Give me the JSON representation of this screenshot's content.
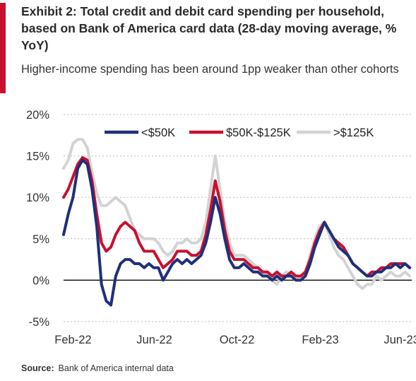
{
  "title": "Exhibit 2: Total credit and debit card spending per household, based on Bank  of America card data (28-day  moving average, % YoY)",
  "subtitle": "Higher-income spending has been around 1pp weaker than other cohorts",
  "source_label": "Source:",
  "source_text": "Bank of America internal data",
  "colors": {
    "accent": "#c8102e"
  },
  "chart_data": {
    "type": "line",
    "ylim": [
      -5,
      20
    ],
    "yticks": [
      -5,
      0,
      5,
      10,
      15,
      20
    ],
    "ytick_labels": [
      "-5%",
      "0%",
      "5%",
      "10%",
      "15%",
      "20%"
    ],
    "xlim": [
      "2022-02-01",
      "2023-06-30"
    ],
    "xtick_dates": [
      "2022-02-15",
      "2022-06-15",
      "2022-10-15",
      "2023-02-15",
      "2023-06-15"
    ],
    "xtick_labels": [
      "Feb-22",
      "Jun-22",
      "Oct-22",
      "Feb-23",
      "Jun-23"
    ],
    "gridlines": "horizontal-dotted",
    "legend_position": "top",
    "series": [
      {
        "name": "<$50K",
        "color": "#1f2f7a",
        "x": [
          "2022-02-01",
          "2022-02-08",
          "2022-02-15",
          "2022-02-22",
          "2022-03-01",
          "2022-03-08",
          "2022-03-15",
          "2022-03-22",
          "2022-03-29",
          "2022-04-05",
          "2022-04-12",
          "2022-04-19",
          "2022-04-26",
          "2022-05-03",
          "2022-05-10",
          "2022-05-17",
          "2022-05-24",
          "2022-05-31",
          "2022-06-07",
          "2022-06-14",
          "2022-06-21",
          "2022-06-28",
          "2022-07-05",
          "2022-07-12",
          "2022-07-19",
          "2022-07-26",
          "2022-08-02",
          "2022-08-09",
          "2022-08-16",
          "2022-08-23",
          "2022-08-30",
          "2022-09-06",
          "2022-09-13",
          "2022-09-20",
          "2022-09-27",
          "2022-10-04",
          "2022-10-11",
          "2022-10-18",
          "2022-10-25",
          "2022-11-01",
          "2022-11-08",
          "2022-11-15",
          "2022-11-22",
          "2022-11-29",
          "2022-12-06",
          "2022-12-13",
          "2022-12-20",
          "2022-12-27",
          "2023-01-03",
          "2023-01-10",
          "2023-01-17",
          "2023-01-24",
          "2023-01-31",
          "2023-02-07",
          "2023-02-14",
          "2023-02-21",
          "2023-02-28",
          "2023-03-07",
          "2023-03-14",
          "2023-03-21",
          "2023-03-28",
          "2023-04-04",
          "2023-04-11",
          "2023-04-18",
          "2023-04-25",
          "2023-05-02",
          "2023-05-09",
          "2023-05-16",
          "2023-05-23",
          "2023-05-30",
          "2023-06-06",
          "2023-06-13",
          "2023-06-20",
          "2023-06-27"
        ],
        "y": [
          5.5,
          8.0,
          10.0,
          13.5,
          14.5,
          14.0,
          11.0,
          6.5,
          -0.5,
          -2.5,
          -3.0,
          0.5,
          2.0,
          2.5,
          2.5,
          2.0,
          2.0,
          1.5,
          2.0,
          1.5,
          1.5,
          0.0,
          1.0,
          2.0,
          2.5,
          2.0,
          2.5,
          2.0,
          2.5,
          3.0,
          4.5,
          7.0,
          10.0,
          8.0,
          5.0,
          2.5,
          1.5,
          1.5,
          2.0,
          1.5,
          1.0,
          1.0,
          0.5,
          0.5,
          0.0,
          0.5,
          0.0,
          0.5,
          0.5,
          0.0,
          0.0,
          0.5,
          2.0,
          4.0,
          5.5,
          7.0,
          6.0,
          5.0,
          4.0,
          3.5,
          3.0,
          2.0,
          1.5,
          1.0,
          0.5,
          0.5,
          1.0,
          1.0,
          1.5,
          1.5,
          2.0,
          1.5,
          2.0,
          1.5
        ]
      },
      {
        "name": "$50K-$125K",
        "color": "#c8102e",
        "x": [
          "2022-02-01",
          "2022-02-08",
          "2022-02-15",
          "2022-02-22",
          "2022-03-01",
          "2022-03-08",
          "2022-03-15",
          "2022-03-22",
          "2022-03-29",
          "2022-04-05",
          "2022-04-12",
          "2022-04-19",
          "2022-04-26",
          "2022-05-03",
          "2022-05-10",
          "2022-05-17",
          "2022-05-24",
          "2022-05-31",
          "2022-06-07",
          "2022-06-14",
          "2022-06-21",
          "2022-06-28",
          "2022-07-05",
          "2022-07-12",
          "2022-07-19",
          "2022-07-26",
          "2022-08-02",
          "2022-08-09",
          "2022-08-16",
          "2022-08-23",
          "2022-08-30",
          "2022-09-06",
          "2022-09-13",
          "2022-09-20",
          "2022-09-27",
          "2022-10-04",
          "2022-10-11",
          "2022-10-18",
          "2022-10-25",
          "2022-11-01",
          "2022-11-08",
          "2022-11-15",
          "2022-11-22",
          "2022-11-29",
          "2022-12-06",
          "2022-12-13",
          "2022-12-20",
          "2022-12-27",
          "2023-01-03",
          "2023-01-10",
          "2023-01-17",
          "2023-01-24",
          "2023-01-31",
          "2023-02-07",
          "2023-02-14",
          "2023-02-21",
          "2023-02-28",
          "2023-03-07",
          "2023-03-14",
          "2023-03-21",
          "2023-03-28",
          "2023-04-04",
          "2023-04-11",
          "2023-04-18",
          "2023-04-25",
          "2023-05-02",
          "2023-05-09",
          "2023-05-16",
          "2023-05-23",
          "2023-05-30",
          "2023-06-06",
          "2023-06-13",
          "2023-06-20",
          "2023-06-27"
        ],
        "y": [
          10.0,
          11.0,
          12.5,
          14.0,
          14.8,
          14.5,
          12.0,
          8.0,
          4.5,
          3.5,
          4.0,
          5.5,
          6.5,
          7.0,
          6.5,
          6.0,
          4.5,
          3.5,
          3.5,
          3.5,
          2.5,
          1.5,
          2.0,
          2.5,
          3.5,
          3.5,
          3.5,
          3.0,
          3.0,
          3.5,
          5.5,
          8.5,
          12.0,
          9.5,
          6.0,
          3.5,
          2.5,
          2.5,
          2.5,
          2.0,
          1.5,
          1.5,
          1.0,
          1.0,
          0.5,
          1.0,
          0.5,
          0.5,
          1.0,
          0.5,
          0.5,
          1.0,
          2.5,
          4.5,
          6.0,
          7.0,
          6.0,
          5.0,
          4.5,
          4.0,
          3.0,
          2.0,
          1.5,
          1.0,
          0.5,
          1.0,
          1.0,
          1.5,
          1.5,
          2.0,
          2.0,
          2.0,
          2.0,
          1.5
        ]
      },
      {
        "name": ">$125K",
        "color": "#d3d3d3",
        "x": [
          "2022-02-01",
          "2022-02-08",
          "2022-02-15",
          "2022-02-22",
          "2022-03-01",
          "2022-03-08",
          "2022-03-15",
          "2022-03-22",
          "2022-03-29",
          "2022-04-05",
          "2022-04-12",
          "2022-04-19",
          "2022-04-26",
          "2022-05-03",
          "2022-05-10",
          "2022-05-17",
          "2022-05-24",
          "2022-05-31",
          "2022-06-07",
          "2022-06-14",
          "2022-06-21",
          "2022-06-28",
          "2022-07-05",
          "2022-07-12",
          "2022-07-19",
          "2022-07-26",
          "2022-08-02",
          "2022-08-09",
          "2022-08-16",
          "2022-08-23",
          "2022-08-30",
          "2022-09-06",
          "2022-09-13",
          "2022-09-20",
          "2022-09-27",
          "2022-10-04",
          "2022-10-11",
          "2022-10-18",
          "2022-10-25",
          "2022-11-01",
          "2022-11-08",
          "2022-11-15",
          "2022-11-22",
          "2022-11-29",
          "2022-12-06",
          "2022-12-13",
          "2022-12-20",
          "2022-12-27",
          "2023-01-03",
          "2023-01-10",
          "2023-01-17",
          "2023-01-24",
          "2023-01-31",
          "2023-02-07",
          "2023-02-14",
          "2023-02-21",
          "2023-02-28",
          "2023-03-07",
          "2023-03-14",
          "2023-03-21",
          "2023-03-28",
          "2023-04-04",
          "2023-04-11",
          "2023-04-18",
          "2023-04-25",
          "2023-05-02",
          "2023-05-09",
          "2023-05-16",
          "2023-05-23",
          "2023-05-30",
          "2023-06-06",
          "2023-06-13",
          "2023-06-20",
          "2023-06-27"
        ],
        "y": [
          13.5,
          14.5,
          16.5,
          17.0,
          17.0,
          16.0,
          13.0,
          10.5,
          9.0,
          9.0,
          9.5,
          10.0,
          9.5,
          9.0,
          7.5,
          6.0,
          5.5,
          5.0,
          5.0,
          5.0,
          4.5,
          3.5,
          3.0,
          3.5,
          4.5,
          4.5,
          5.0,
          4.5,
          4.5,
          5.0,
          7.0,
          11.0,
          15.0,
          11.0,
          7.0,
          4.5,
          3.0,
          3.0,
          3.0,
          2.5,
          2.0,
          1.5,
          1.0,
          0.5,
          0.0,
          -0.5,
          0.5,
          1.0,
          0.5,
          0.0,
          0.5,
          1.0,
          3.0,
          5.0,
          6.5,
          7.0,
          5.5,
          4.0,
          3.0,
          2.5,
          1.5,
          0.5,
          -0.5,
          -1.0,
          -0.5,
          -0.5,
          0.5,
          0.0,
          0.5,
          1.0,
          0.5,
          0.5,
          1.0,
          0.5
        ]
      }
    ]
  }
}
